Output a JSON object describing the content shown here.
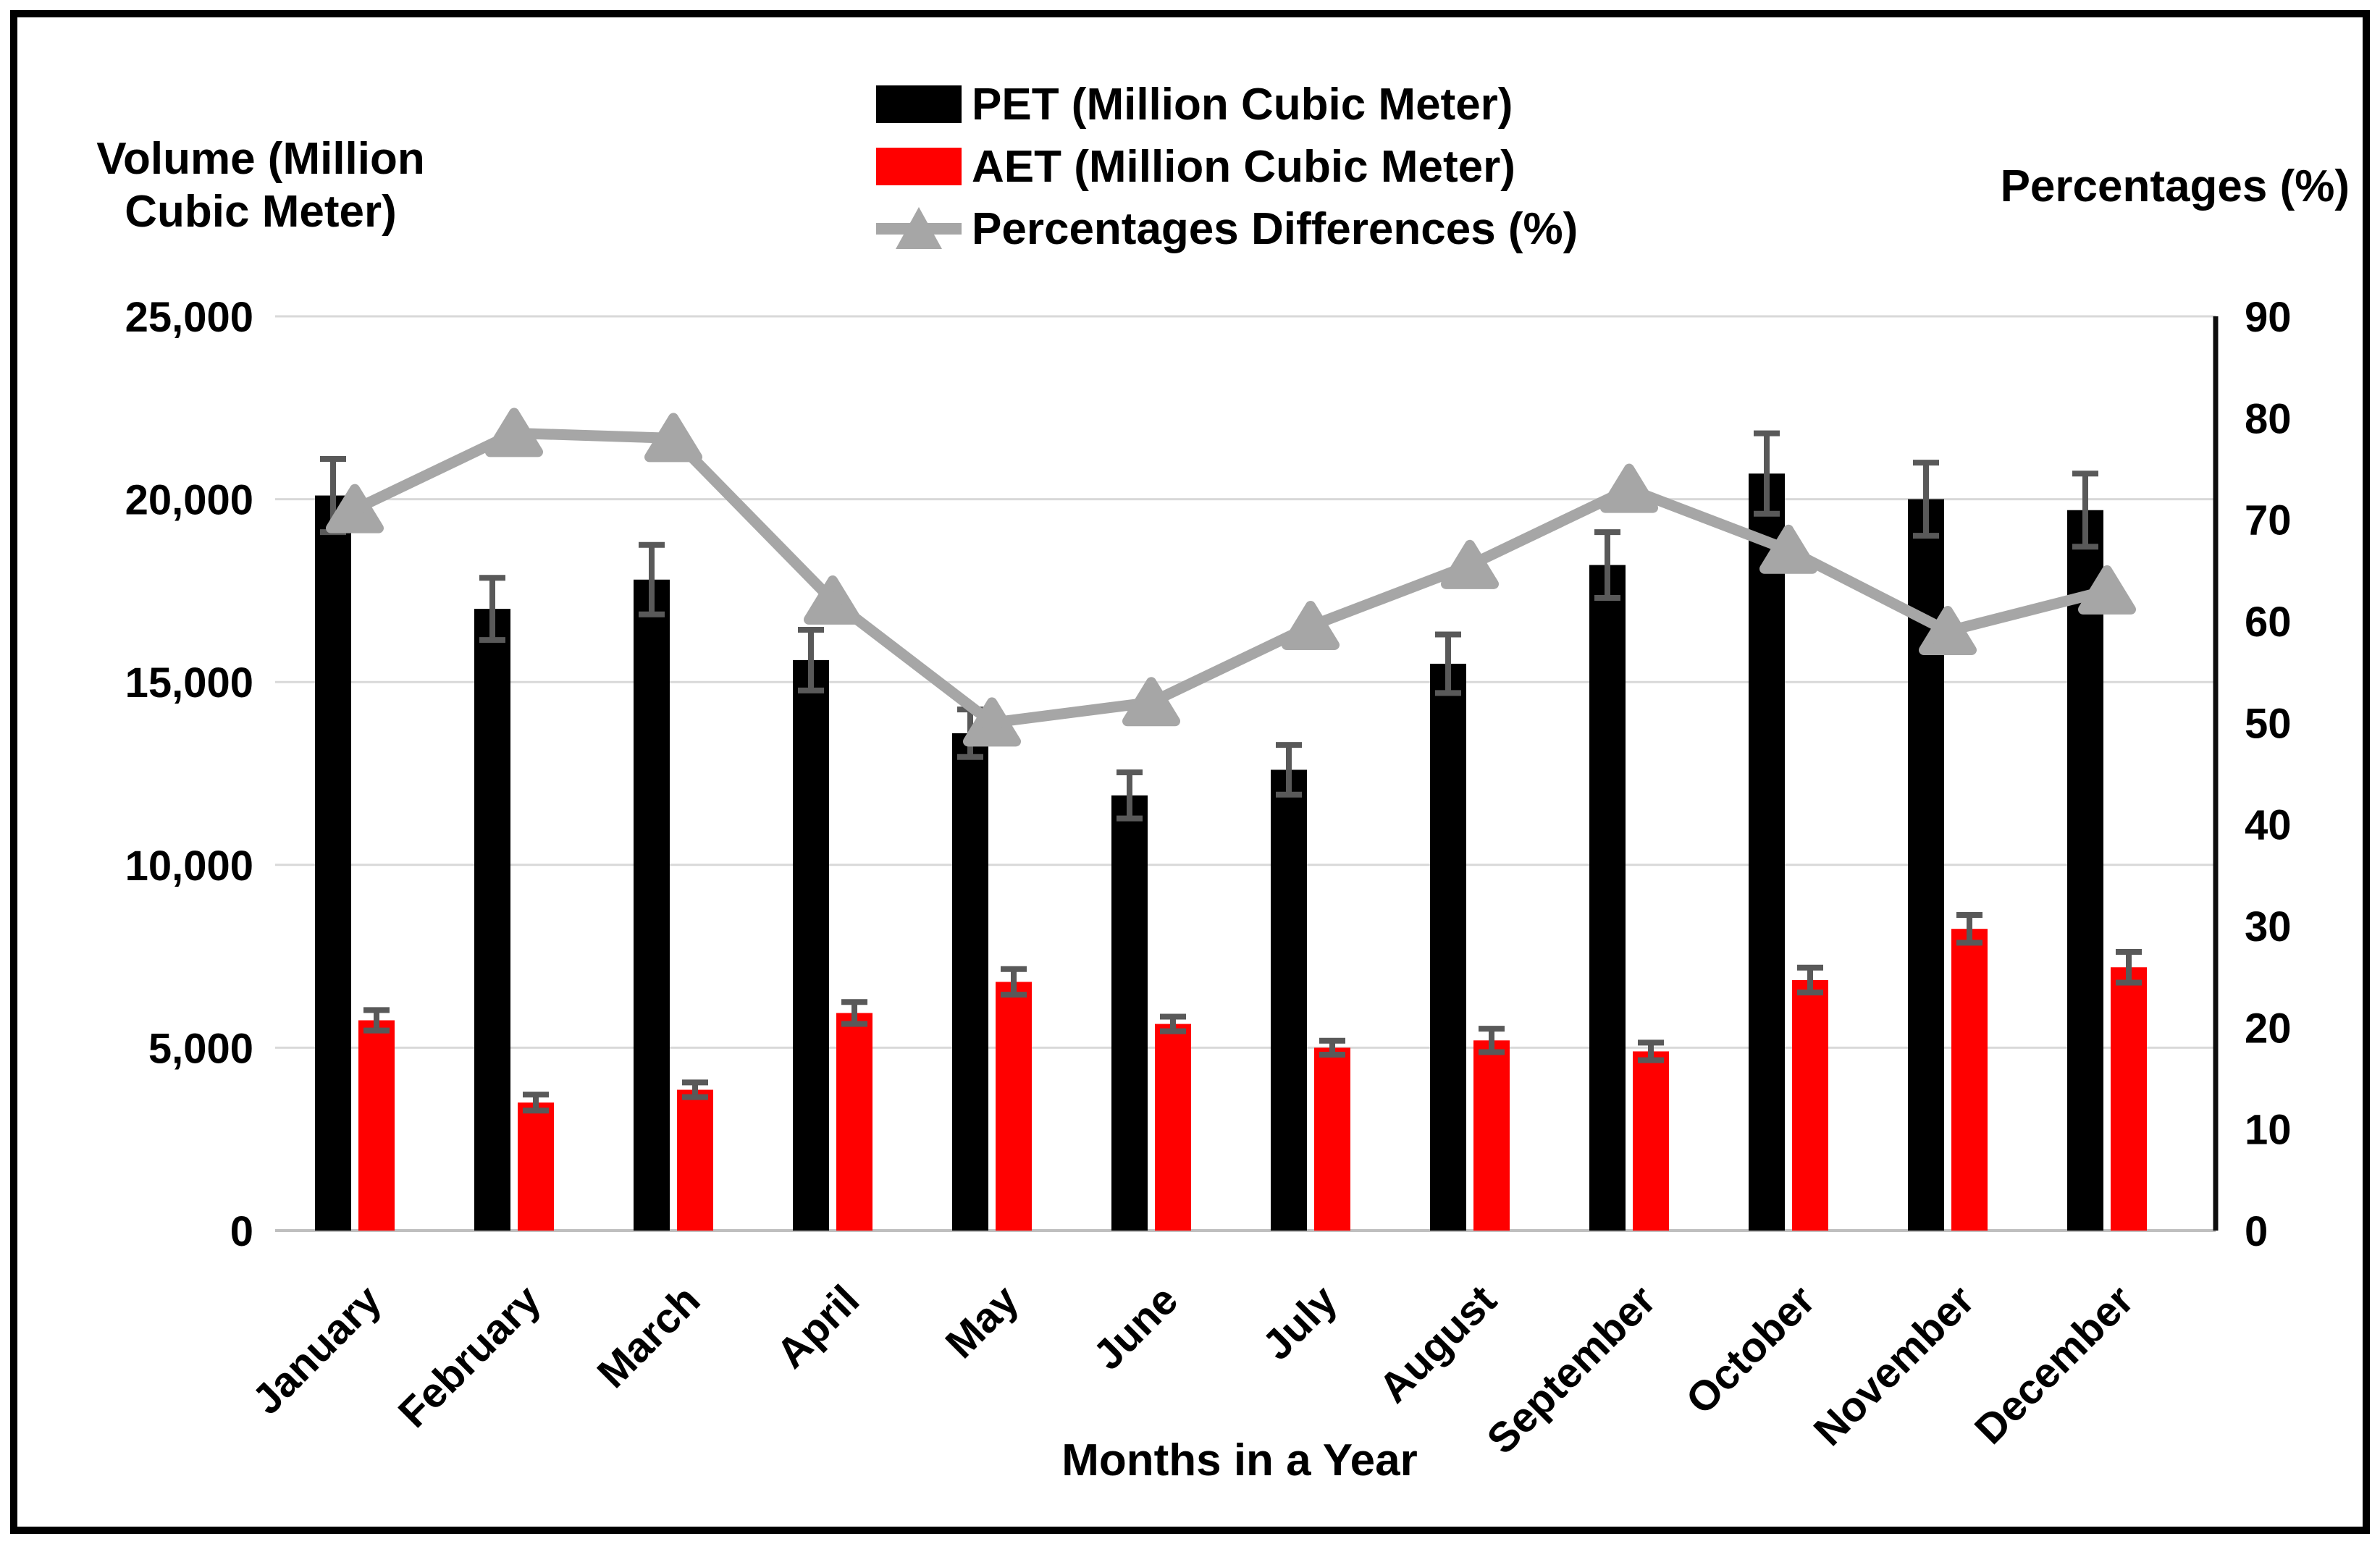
{
  "chart_data": {
    "type": "bar",
    "title": "",
    "categories": [
      "January",
      "February",
      "March",
      "April",
      "May",
      "June",
      "July",
      "August",
      "September",
      "October",
      "November",
      "December"
    ],
    "series": [
      {
        "name": "PET (Million Cubic Meter)",
        "type": "bar",
        "axis": "left",
        "color": "#000000",
        "values": [
          20100,
          17000,
          17800,
          15600,
          13600,
          11900,
          12600,
          15500,
          18200,
          20700,
          20000,
          19700
        ],
        "errors": [
          1000,
          850,
          950,
          830,
          650,
          630,
          680,
          800,
          900,
          1100,
          1000,
          1000
        ]
      },
      {
        "name": "AET (Million Cubic Meter)",
        "type": "bar",
        "axis": "left",
        "color": "#FF0000",
        "values": [
          5750,
          3500,
          3850,
          5950,
          6800,
          5650,
          5000,
          5200,
          4900,
          6850,
          8250,
          7200
        ],
        "errors": [
          280,
          220,
          200,
          300,
          350,
          200,
          190,
          320,
          240,
          340,
          380,
          420
        ]
      },
      {
        "name": "Percentages Differences (%)",
        "type": "line",
        "axis": "right",
        "color": "#A6A6A6",
        "marker": "triangle",
        "values": [
          71,
          78.5,
          78,
          62,
          50,
          52,
          59.5,
          65.5,
          73,
          67,
          59,
          63
        ]
      }
    ],
    "left_axis": {
      "title": "Volume (Million Cubic Meter)",
      "min": 0,
      "max": 25000,
      "step": 5000,
      "tick_labels": [
        "0",
        "5,000",
        "10,000",
        "15,000",
        "20,000",
        "25,000"
      ]
    },
    "right_axis": {
      "title": "Percentages (%)",
      "min": 0,
      "max": 90,
      "step": 10,
      "tick_labels": [
        "0",
        "10",
        "20",
        "30",
        "40",
        "50",
        "60",
        "70",
        "80",
        "90"
      ]
    },
    "xlabel": "Months in a Year",
    "legend_position": "top",
    "grid": true,
    "colors": {
      "gridline": "#D9D9D9",
      "x_axis_line": "#BFBFBF",
      "right_axis_line": "#0D0D0D",
      "error_bar": "#595959",
      "text": "#000000"
    }
  }
}
